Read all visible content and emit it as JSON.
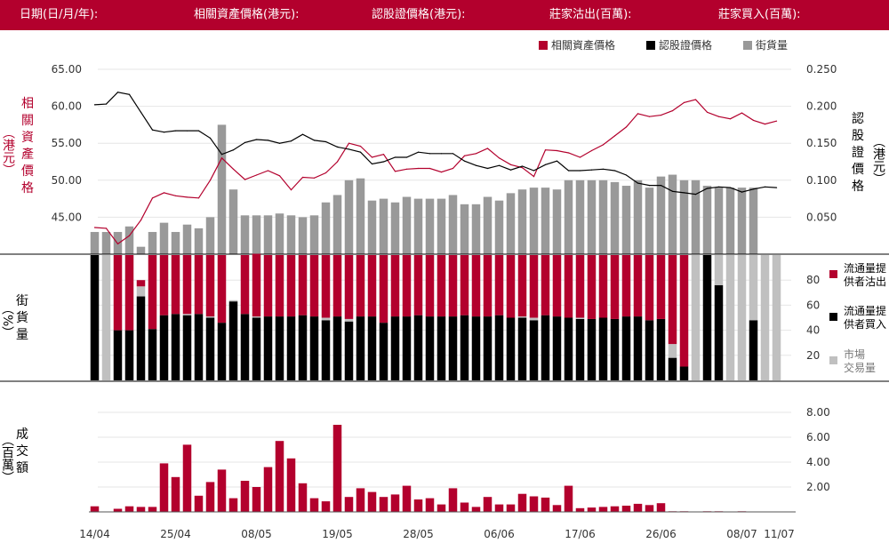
{
  "header": {
    "date": "日期(日/月/年):",
    "underlying": "相關資產價格(港元):",
    "warrant": "認股證價格(港元):",
    "mm_sell": "莊家沽出(百萬):",
    "mm_buy": "莊家買入(百萬):"
  },
  "colors": {
    "red": "#b3002d",
    "black": "#000000",
    "gray": "#999999",
    "lightgray": "#c0c0c0",
    "header_bg": "#b3002d"
  },
  "chart_data": [
    {
      "type": "line",
      "legend": [
        "相關資產價格",
        "認股證價格",
        "街貨量"
      ],
      "legend_placement": "top-right",
      "y_left_label": [
        "相",
        "關",
        "資",
        "產",
        "價",
        "格"
      ],
      "y_left_paren": "（港元）",
      "y_left_ticks": [
        "65.00",
        "60.00",
        "55.00",
        "50.00",
        "45.00"
      ],
      "y_left_range": [
        40.0,
        65.0
      ],
      "y_right_label": [
        "認",
        "股",
        "證",
        "價",
        "格"
      ],
      "y_right_paren": "（港元）",
      "y_right_ticks": [
        "0.250",
        "0.200",
        "0.150",
        "0.100",
        "0.050"
      ],
      "y_right_range": [
        0.0,
        0.25
      ],
      "underlying_price": [
        43.6,
        43.5,
        41.4,
        42.5,
        44.6,
        47.6,
        48.3,
        47.9,
        47.7,
        47.6,
        50.0,
        53.0,
        51.5,
        50.1,
        50.7,
        51.3,
        50.6,
        48.7,
        50.4,
        50.3,
        51.0,
        52.5,
        55.0,
        54.6,
        53.1,
        53.5,
        51.2,
        51.5,
        51.6,
        51.6,
        51.1,
        51.6,
        53.3,
        53.6,
        54.3,
        53.0,
        52.1,
        51.7,
        50.5,
        54.1,
        54.0,
        53.7,
        53.1,
        54.0,
        54.8,
        56.0,
        57.2,
        59.0,
        58.6,
        58.8,
        59.4,
        60.5,
        60.9,
        59.2,
        58.6,
        58.3,
        59.1,
        58.1,
        57.6,
        58.0
      ],
      "warrant_price": [
        0.202,
        0.203,
        0.219,
        0.216,
        0.192,
        0.168,
        0.165,
        0.167,
        0.167,
        0.167,
        0.157,
        0.135,
        0.141,
        0.151,
        0.155,
        0.154,
        0.15,
        0.153,
        0.162,
        0.154,
        0.152,
        0.145,
        0.142,
        0.138,
        0.122,
        0.125,
        0.131,
        0.131,
        0.138,
        0.136,
        0.136,
        0.136,
        0.126,
        0.12,
        0.116,
        0.12,
        0.114,
        0.119,
        0.113,
        0.121,
        0.126,
        0.113,
        0.113,
        0.114,
        0.115,
        0.113,
        0.107,
        0.096,
        0.093,
        0.093,
        0.085,
        0.083,
        0.081,
        0.089,
        0.091,
        0.09,
        0.084,
        0.088,
        0.091,
        0.09
      ],
      "outstanding_qty": [
        12,
        12,
        12,
        15,
        4,
        12,
        17,
        12,
        16,
        14,
        20,
        70,
        35,
        21,
        21,
        21,
        22,
        21,
        20,
        21,
        28,
        32,
        40,
        41,
        29,
        30,
        28,
        31,
        30,
        30,
        30,
        32,
        27,
        27,
        31,
        29,
        33,
        35,
        36,
        36,
        35,
        40,
        40,
        40,
        40,
        39,
        37,
        40,
        36,
        42,
        43,
        40,
        40,
        37,
        36,
        36,
        36,
        36,
        0,
        0
      ]
    },
    {
      "type": "bar",
      "stacked": true,
      "y_label": [
        "街",
        "貨",
        "量"
      ],
      "y_paren": "（%）",
      "y_ticks": [
        "80",
        "60",
        "40",
        "20"
      ],
      "y_range": [
        0,
        100
      ],
      "legend": [
        [
          "流通量提",
          "供者沽出"
        ],
        [
          "流通量提",
          "供者買入"
        ],
        [
          "市場",
          "交易量"
        ]
      ],
      "mm_sell_pct": [
        0,
        0,
        60,
        60,
        5,
        59,
        48,
        47,
        47,
        47,
        49,
        54,
        0,
        47,
        50,
        49,
        49,
        49,
        48,
        49,
        50,
        49,
        51,
        49,
        49,
        54,
        49,
        49,
        48,
        49,
        49,
        49,
        48,
        49,
        49,
        48,
        50,
        49,
        50,
        48,
        49,
        50,
        50,
        51,
        50,
        51,
        49,
        49,
        52,
        51,
        71,
        89,
        0,
        0,
        0,
        0,
        0,
        0,
        0,
        0
      ],
      "mm_buy_pct": [
        100,
        0,
        40,
        40,
        67,
        41,
        52,
        53,
        52,
        53,
        50,
        46,
        63,
        53,
        50,
        51,
        51,
        51,
        52,
        51,
        48,
        51,
        47,
        51,
        51,
        46,
        51,
        51,
        52,
        51,
        51,
        51,
        52,
        51,
        51,
        52,
        50,
        50,
        48,
        52,
        51,
        50,
        49,
        49,
        50,
        49,
        51,
        51,
        48,
        49,
        18,
        11,
        0,
        100,
        76,
        0,
        0,
        48,
        0,
        0
      ],
      "market_pct": [
        0,
        100,
        0,
        0,
        8,
        0,
        0,
        0,
        1,
        0,
        1,
        0,
        1,
        0,
        1,
        0,
        0,
        0,
        0,
        0,
        2,
        0,
        2,
        0,
        0,
        0,
        0,
        0,
        0,
        0,
        0,
        0,
        0,
        0,
        0,
        0,
        0,
        1,
        2,
        0,
        0,
        0,
        1,
        0,
        0,
        0,
        0,
        0,
        0,
        0,
        11,
        0,
        100,
        0,
        24,
        100,
        100,
        52,
        100,
        100
      ]
    },
    {
      "type": "bar",
      "y_label": [
        "成",
        "交",
        "額"
      ],
      "y_paren": "（百萬）",
      "y_ticks": [
        "8.00",
        "6.00",
        "4.00",
        "2.00"
      ],
      "y_range": [
        0,
        8.0
      ],
      "turnover": [
        0.45,
        0,
        0.25,
        0.45,
        0.4,
        0.4,
        3.9,
        2.8,
        5.4,
        1.3,
        2.4,
        3.4,
        1.1,
        2.5,
        2.0,
        3.6,
        5.7,
        4.3,
        2.3,
        1.1,
        0.85,
        7.0,
        1.2,
        1.9,
        1.6,
        1.2,
        1.4,
        2.1,
        1.0,
        1.1,
        0.6,
        1.9,
        0.75,
        0.4,
        1.2,
        0.6,
        0.6,
        1.45,
        1.25,
        1.15,
        0.55,
        2.1,
        0.3,
        0.35,
        0.4,
        0.45,
        0.5,
        0.65,
        0.55,
        0.7,
        0.05,
        0.05,
        0,
        0.05,
        0.05,
        0,
        0.05,
        0,
        0,
        0
      ],
      "x_tick_labels": [
        "14/04",
        "25/04",
        "08/05",
        "19/05",
        "28/05",
        "06/06",
        "17/06",
        "26/06",
        "08/07",
        "11/07"
      ],
      "x_tick_indices": [
        0,
        7,
        14,
        21,
        28,
        35,
        42,
        49,
        56,
        59
      ]
    }
  ]
}
